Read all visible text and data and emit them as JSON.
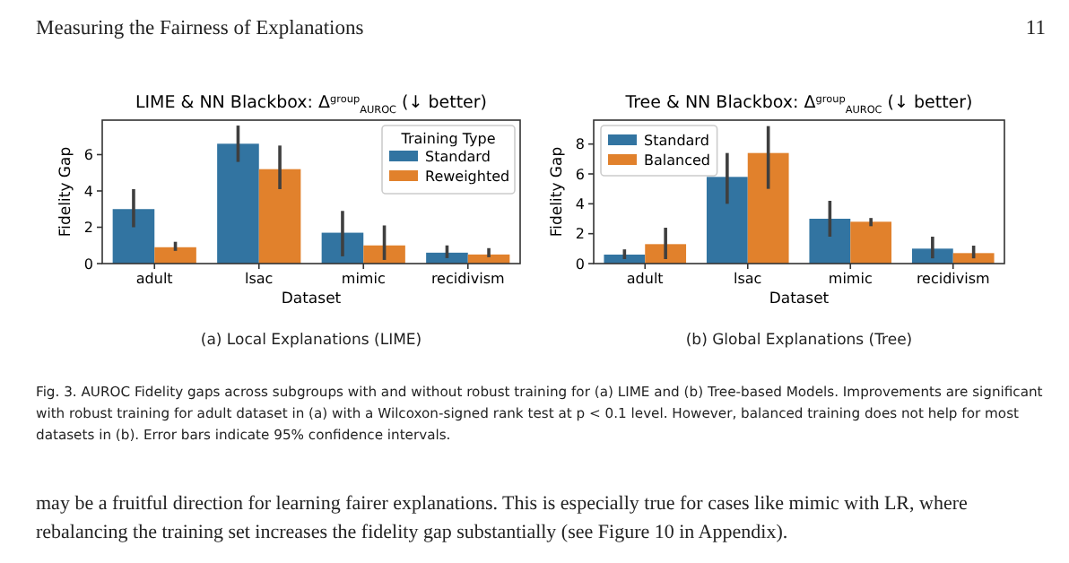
{
  "chart_data": [
    {
      "type": "bar",
      "title": "LIME & NN Blackbox: Δ$^{group}$$_{AUROC}$ (↓ better)",
      "xlabel": "Dataset",
      "ylabel": "Fidelity Gap",
      "legend_title": "Training Type",
      "categories": [
        "adult",
        "lsac",
        "mimic",
        "recidivism"
      ],
      "series": [
        {
          "name": "Standard",
          "color": "#3274a1",
          "values": [
            3.0,
            6.6,
            1.7,
            0.6
          ],
          "errors": [
            [
              2.0,
              4.1
            ],
            [
              5.6,
              7.6
            ],
            [
              0.4,
              2.9
            ],
            [
              0.3,
              1.0
            ]
          ]
        },
        {
          "name": "Reweighted",
          "color": "#e1812c",
          "values": [
            0.9,
            5.2,
            1.0,
            0.5
          ],
          "errors": [
            [
              0.7,
              1.2
            ],
            [
              4.1,
              6.5
            ],
            [
              0.2,
              2.1
            ],
            [
              0.35,
              0.85
            ]
          ]
        }
      ],
      "ylim": [
        0,
        7.9
      ],
      "yticks": [
        0,
        2,
        4,
        6
      ],
      "legend": "top right",
      "annotations": [
        "Measuring the Fairness of Explanations",
        "11",
        "(a) Local Explanations (LIME)",
        "Fig. 3.  AUROC Fidelity gaps across subgroups with and without robust training for (a) LIME and (b) Tree-based Models. Improvements are significant with robust training for adult dataset in (a) with a Wilcoxon-signed rank test at p < 0.1 level. However, balanced training does not help for most datasets in (b). Error bars indicate 95% confidence intervals.",
        "may be a fruitful direction for learning fairer explanations. This is especially true for cases like mimic with LR, where rebalancing the training set increases the fidelity gap substantially (see Figure 10 in Appendix)."
      ]
    },
    {
      "type": "bar",
      "title": "Tree & NN Blackbox: Δ$^{group}$$_{AUROC}$ (↓ better)",
      "xlabel": "Dataset",
      "ylabel": "Fidelity Gap",
      "categories": [
        "adult",
        "lsac",
        "mimic",
        "recidivism"
      ],
      "series": [
        {
          "name": "Standard",
          "color": "#3274a1",
          "values": [
            0.6,
            5.8,
            3.0,
            1.0
          ],
          "errors": [
            [
              0.3,
              0.95
            ],
            [
              4.0,
              7.4
            ],
            [
              1.8,
              4.2
            ],
            [
              0.35,
              1.8
            ]
          ]
        },
        {
          "name": "Balanced",
          "color": "#e1812c",
          "values": [
            1.3,
            7.4,
            2.8,
            0.7
          ],
          "errors": [
            [
              0.3,
              2.4
            ],
            [
              5.0,
              9.2
            ],
            [
              2.5,
              3.05
            ],
            [
              0.35,
              1.2
            ]
          ]
        }
      ],
      "ylim": [
        0,
        9.6
      ],
      "yticks": [
        0,
        2,
        4,
        6,
        8
      ],
      "legend": "top left",
      "annotations": [
        "(b) Global Explanations (Tree)"
      ]
    }
  ]
}
